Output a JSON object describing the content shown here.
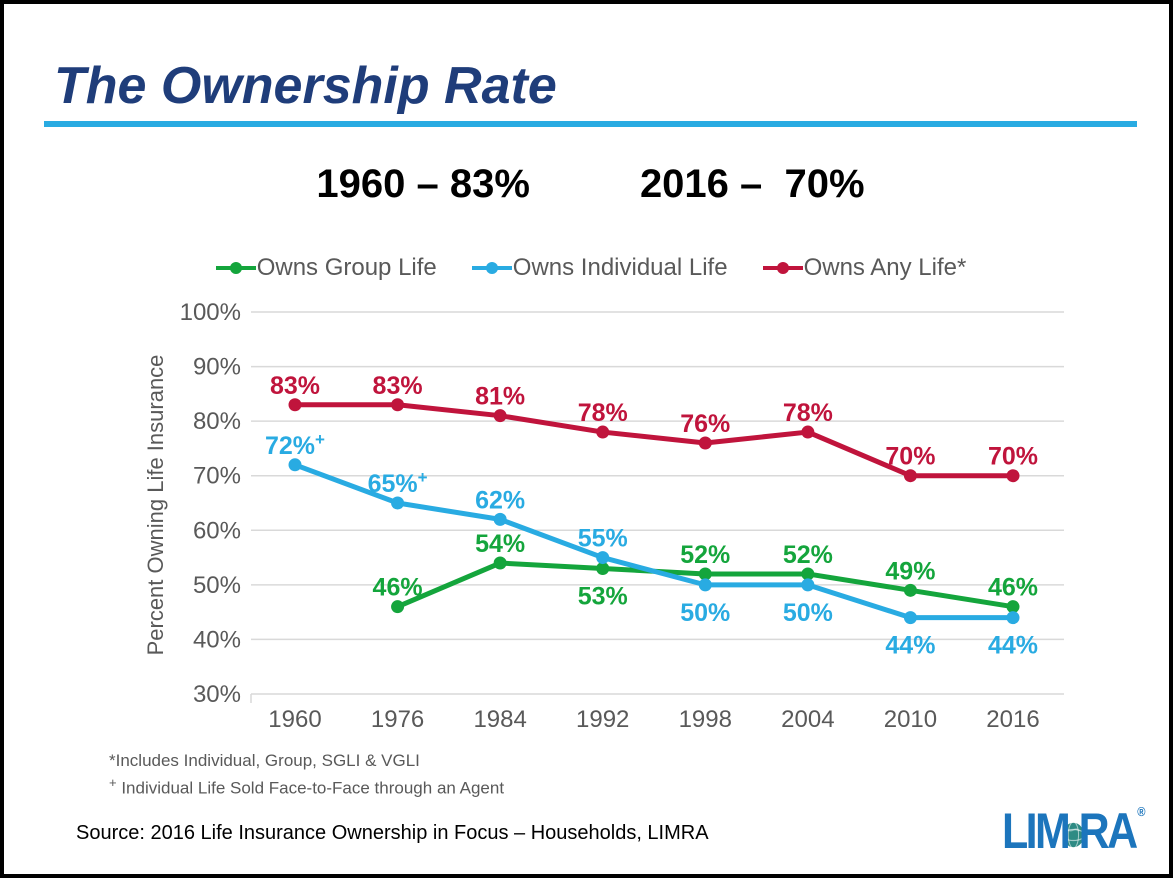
{
  "header": {
    "title": "The Ownership Rate",
    "stat_left": "1960 – 83%",
    "stat_right": "2016 –  70%"
  },
  "chart_data": {
    "type": "line",
    "title": "",
    "xlabel": "",
    "ylabel": "Percent Owning Life Insurance",
    "categories": [
      "1960",
      "1976",
      "1984",
      "1992",
      "1998",
      "2004",
      "2010",
      "2016"
    ],
    "ylim": [
      30,
      100
    ],
    "ytick_step": 10,
    "ytick_suffix": "%",
    "grid": "horizontal-only",
    "legend_position": "top",
    "series": [
      {
        "name": "Owns Group Life",
        "color": "#14a53c",
        "values": [
          null,
          46,
          54,
          53,
          52,
          52,
          49,
          46
        ],
        "label_positions": [
          null,
          "above",
          "above",
          "below",
          "above",
          "above",
          "above",
          "above"
        ],
        "label_superscripts": [
          null,
          "",
          "",
          "",
          "",
          "",
          "",
          ""
        ]
      },
      {
        "name": "Owns Individual Life",
        "color": "#29abe2",
        "values": [
          72,
          65,
          62,
          55,
          50,
          50,
          44,
          44
        ],
        "label_positions": [
          "above",
          "above",
          "above",
          "above",
          "below",
          "below",
          "below",
          "below"
        ],
        "label_superscripts": [
          "+",
          "+",
          "",
          "",
          "",
          "",
          "",
          ""
        ]
      },
      {
        "name": "Owns Any Life*",
        "color": "#c0143c",
        "values": [
          83,
          83,
          81,
          78,
          76,
          78,
          70,
          70
        ],
        "label_positions": [
          "above",
          "above",
          "above",
          "above",
          "above",
          "above",
          "above",
          "above"
        ],
        "label_superscripts": [
          "",
          "",
          "",
          "",
          "",
          "",
          "",
          ""
        ]
      }
    ]
  },
  "footnotes": {
    "line1": "*Includes Individual, Group, SGLI & VGLI",
    "line2_sup": "+",
    "line2": " Individual Life Sold Face-to-Face through an Agent"
  },
  "source": "Source: 2016 Life Insurance Ownership in Focus – Households, LIMRA",
  "logo": {
    "part_left": "LIM",
    "part_right": "RA",
    "registered": "®"
  },
  "colors": {
    "title_navy": "#1f3d7a",
    "rule_cyan": "#29abe2",
    "axis_text": "#595959",
    "grid_line": "#d9d9d9",
    "logo_blue": "#1c75bc",
    "globe_teal": "#2e8b84"
  }
}
